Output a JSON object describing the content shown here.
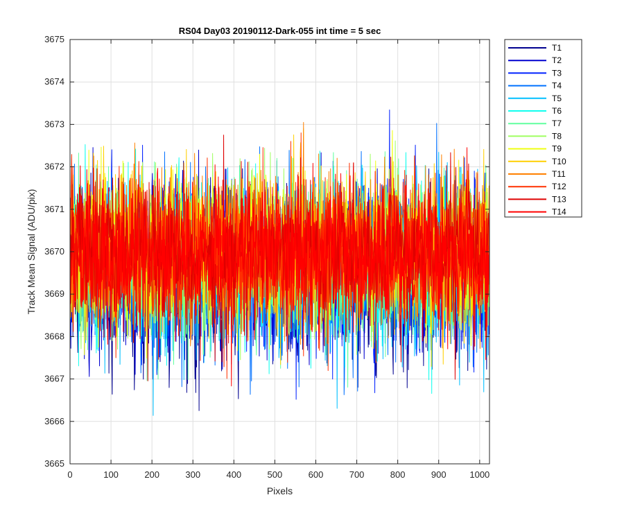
{
  "chart_data": {
    "type": "line",
    "title": "RS04 Day03 20190112-Dark-055 int time = 5 sec",
    "xlabel": "Pixels",
    "ylabel": "Track Mean Signal (ADU/pix)",
    "xlim": [
      0,
      1024
    ],
    "ylim": [
      3665,
      3675
    ],
    "x_ticks": [
      "0",
      "100",
      "200",
      "300",
      "400",
      "500",
      "600",
      "700",
      "800",
      "900",
      "1000"
    ],
    "y_ticks": [
      "3665",
      "3666",
      "3667",
      "3668",
      "3669",
      "3670",
      "3671",
      "3672",
      "3673",
      "3674",
      "3675"
    ],
    "grid": true,
    "legend_position": "outside-top-right",
    "x": "pixel index 0–1024 (1025 points per series)",
    "series_summary": {
      "mean": 3669.9,
      "noise_std": 0.85,
      "min_observed": 3665.55,
      "max_observed": 3674.15
    },
    "series": [
      {
        "name": "T1",
        "color": "#00008f",
        "mean": 3669.4,
        "sd": 1.0
      },
      {
        "name": "T2",
        "color": "#0000cf",
        "mean": 3669.5,
        "sd": 0.95
      },
      {
        "name": "T3",
        "color": "#0020ff",
        "mean": 3669.6,
        "sd": 0.95
      },
      {
        "name": "T4",
        "color": "#0070ff",
        "mean": 3669.6,
        "sd": 0.95
      },
      {
        "name": "T5",
        "color": "#00bfff",
        "mean": 3669.7,
        "sd": 0.95
      },
      {
        "name": "T6",
        "color": "#10ffef",
        "mean": 3669.8,
        "sd": 0.9
      },
      {
        "name": "T7",
        "color": "#60ff9f",
        "mean": 3669.8,
        "sd": 0.9
      },
      {
        "name": "T8",
        "color": "#9fff60",
        "mean": 3669.9,
        "sd": 0.9
      },
      {
        "name": "T9",
        "color": "#efff10",
        "mean": 3670.0,
        "sd": 0.9
      },
      {
        "name": "T10",
        "color": "#ffcf00",
        "mean": 3670.0,
        "sd": 0.9
      },
      {
        "name": "T11",
        "color": "#ff8000",
        "mean": 3670.0,
        "sd": 0.85
      },
      {
        "name": "T12",
        "color": "#ff3000",
        "mean": 3670.0,
        "sd": 0.85
      },
      {
        "name": "T13",
        "color": "#df0000",
        "mean": 3670.0,
        "sd": 0.85
      },
      {
        "name": "T14",
        "color": "#ff0000",
        "mean": 3669.9,
        "sd": 0.8
      }
    ]
  }
}
